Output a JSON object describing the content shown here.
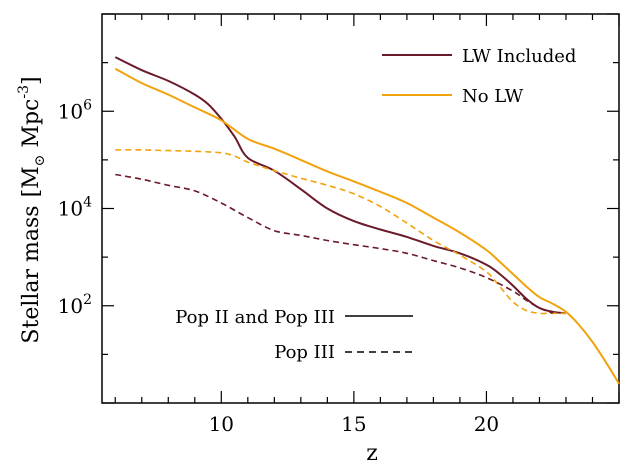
{
  "chart_data": {
    "type": "line",
    "title": "",
    "xlabel": "z",
    "ylabel_prefix": "Stellar mass",
    "ylabel_unit": "[M",
    "ylabel_sun": "⊙",
    "ylabel_mpc": " Mpc",
    "ylabel_exp": "-3",
    "ylabel_close": "]",
    "xlim": [
      5.5,
      25
    ],
    "ylim": [
      1,
      100000000.0
    ],
    "y_scale": "log",
    "x_ticks": [
      {
        "value": 10,
        "label": "10"
      },
      {
        "value": 15,
        "label": "15"
      },
      {
        "value": 20,
        "label": "20"
      }
    ],
    "y_ticks": [
      {
        "value": 100,
        "base": "10",
        "exp": "2"
      },
      {
        "value": 10000,
        "base": "10",
        "exp": "4"
      },
      {
        "value": 1000000,
        "base": "10",
        "exp": "6"
      }
    ],
    "legend_colors": {
      "title": "",
      "position": "top-right",
      "entries": [
        {
          "label": "LW Included",
          "color": "#6b1a2a"
        },
        {
          "label": "No LW",
          "color": "#f2a20d"
        }
      ]
    },
    "legend_styles": {
      "position": "bottom-left",
      "entries": [
        {
          "label": "Pop II and Pop III",
          "dash": "solid"
        },
        {
          "label": "Pop III",
          "dash": "dashed"
        }
      ]
    },
    "series": [
      {
        "color": "#6b1a2a",
        "dash": "solid",
        "x": [
          6,
          7,
          8,
          9,
          9.5,
          10,
          10.5,
          11,
          12,
          13,
          14,
          15,
          16,
          17,
          18,
          19,
          20,
          20.5,
          21,
          21.5,
          22,
          22.5,
          23
        ],
        "y": [
          13000000,
          7000000,
          4200000,
          2200000,
          1400000,
          700000,
          300000,
          110000,
          60000,
          25000,
          10000,
          5500,
          3700,
          2600,
          1700,
          1200,
          700,
          450,
          260,
          140,
          90,
          75,
          70
        ]
      },
      {
        "color": "#f2a20d",
        "dash": "solid",
        "x": [
          6,
          7,
          8,
          9,
          10,
          11,
          12,
          13,
          14,
          15,
          16,
          17,
          18,
          19,
          20,
          20.5,
          21,
          21.5,
          22,
          22.5,
          23,
          23.5,
          24,
          24.5,
          25
        ],
        "y": [
          7500000,
          3800000,
          2200000,
          1200000,
          650000,
          270000,
          170000,
          100000,
          58000,
          36000,
          22000,
          13000,
          6500,
          3200,
          1400,
          800,
          450,
          250,
          150,
          110,
          75,
          40,
          18,
          7,
          2.5
        ]
      },
      {
        "color": "#f2a20d",
        "dash": "dashed",
        "x": [
          6,
          7,
          8,
          9,
          10,
          10.5,
          11,
          12,
          13,
          14,
          15,
          16,
          17,
          18,
          19,
          20,
          20.5,
          21,
          21.5,
          22,
          22.5,
          23
        ],
        "y": [
          160000,
          160000,
          155000,
          150000,
          140000,
          120000,
          90000,
          60000,
          42000,
          30000,
          20000,
          11000,
          5000,
          2200,
          1100,
          500,
          250,
          120,
          80,
          70,
          70,
          70
        ]
      },
      {
        "color": "#6b1a2a",
        "dash": "dashed",
        "x": [
          6,
          7,
          8,
          9,
          10,
          11,
          12,
          13,
          14,
          15,
          16,
          17,
          18,
          19,
          20,
          21,
          21.5,
          22,
          22.5
        ],
        "y": [
          50000,
          40000,
          30000,
          23000,
          13000,
          6500,
          3500,
          2800,
          2200,
          1800,
          1500,
          1200,
          850,
          600,
          380,
          200,
          130,
          90,
          70
        ]
      }
    ]
  }
}
